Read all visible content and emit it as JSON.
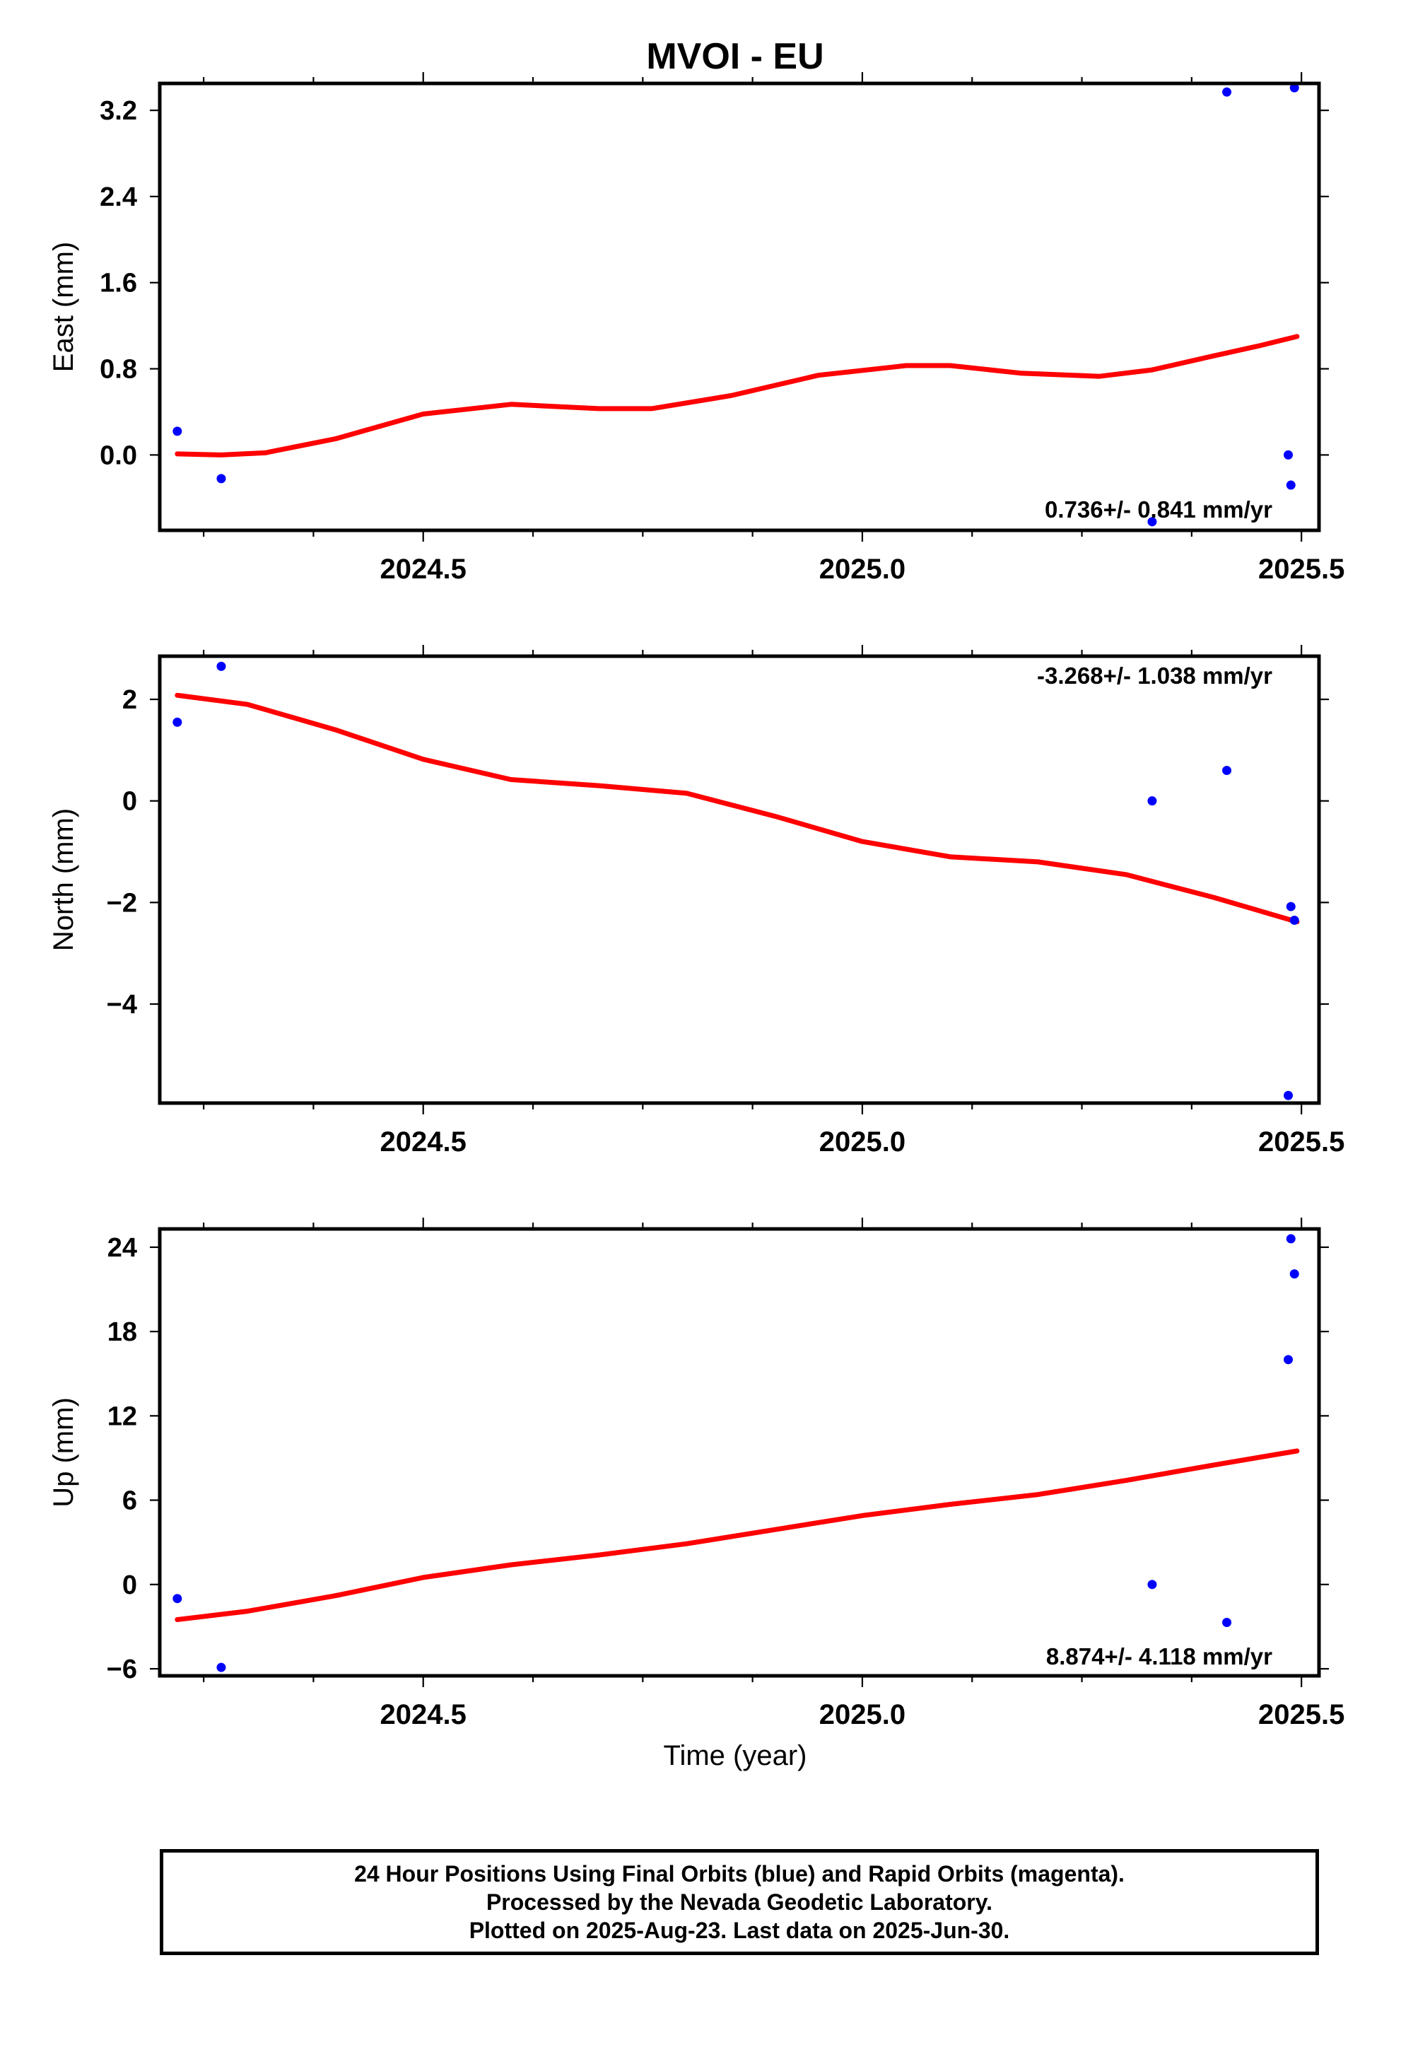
{
  "title": "MVOI - EU",
  "xlabel": "Time (year)",
  "footer": {
    "line1": "24 Hour Positions Using Final Orbits (blue) and Rapid Orbits (magenta).",
    "line2": "Processed by the Nevada Geodetic Laboratory.",
    "line3": "Plotted on 2025-Aug-23. Last data on 2025-Jun-30."
  },
  "colors": {
    "points": "#0000ff",
    "fit": "#ff0000",
    "axes": "#000000"
  },
  "chart_data": [
    {
      "type": "scatter",
      "ylabel": "East (mm)",
      "rate": "0.736+/- 0.841 mm/yr",
      "xlim": [
        2024.2,
        2025.52
      ],
      "ylim": [
        -0.7,
        3.45
      ],
      "yticks": [
        0.0,
        0.8,
        1.6,
        2.4,
        3.2
      ],
      "ytick_labels": [
        "0.0",
        "0.8",
        "1.6",
        "2.4",
        "3.2"
      ],
      "xticks": [
        2024.5,
        2025.0,
        2025.5
      ],
      "xtick_labels": [
        "2024.5",
        "2025.0",
        "2025.5"
      ],
      "points": {
        "x": [
          2024.22,
          2024.27,
          2025.33,
          2025.415,
          2025.485,
          2025.488,
          2025.492
        ],
        "y": [
          0.22,
          -0.22,
          -0.62,
          3.37,
          0.0,
          -0.28,
          3.41
        ]
      },
      "fit": {
        "x": [
          2024.22,
          2024.27,
          2024.32,
          2024.4,
          2024.5,
          2024.6,
          2024.7,
          2024.76,
          2024.85,
          2024.95,
          2025.05,
          2025.1,
          2025.18,
          2025.27,
          2025.33,
          2025.4,
          2025.45,
          2025.495
        ],
        "y": [
          0.01,
          0.0,
          0.02,
          0.15,
          0.38,
          0.47,
          0.43,
          0.43,
          0.55,
          0.74,
          0.83,
          0.83,
          0.76,
          0.73,
          0.79,
          0.92,
          1.01,
          1.1
        ]
      },
      "legend": "none"
    },
    {
      "type": "scatter",
      "ylabel": "North (mm)",
      "rate": "-3.268+/- 1.038 mm/yr",
      "xlim": [
        2024.2,
        2025.52
      ],
      "ylim": [
        -5.95,
        2.85
      ],
      "yticks": [
        -4,
        -2,
        0,
        2
      ],
      "ytick_labels": [
        "−4",
        "−2",
        "0",
        "2"
      ],
      "xticks": [
        2024.5,
        2025.0,
        2025.5
      ],
      "xtick_labels": [
        "2024.5",
        "2025.0",
        "2025.5"
      ],
      "points": {
        "x": [
          2024.22,
          2024.27,
          2025.33,
          2025.415,
          2025.485,
          2025.488,
          2025.492
        ],
        "y": [
          1.55,
          2.65,
          0.0,
          0.6,
          -5.8,
          -2.08,
          -2.35
        ]
      },
      "fit": {
        "x": [
          2024.22,
          2024.3,
          2024.4,
          2024.5,
          2024.6,
          2024.7,
          2024.8,
          2024.9,
          2025.0,
          2025.1,
          2025.2,
          2025.3,
          2025.4,
          2025.495
        ],
        "y": [
          2.08,
          1.9,
          1.4,
          0.82,
          0.42,
          0.3,
          0.15,
          -0.3,
          -0.8,
          -1.1,
          -1.2,
          -1.45,
          -1.9,
          -2.38
        ]
      },
      "legend": "none"
    },
    {
      "type": "scatter",
      "ylabel": "Up (mm)",
      "rate": "8.874+/- 4.118 mm/yr",
      "xlim": [
        2024.2,
        2025.52
      ],
      "ylim": [
        -6.5,
        25.3
      ],
      "yticks": [
        -6,
        0,
        6,
        12,
        18,
        24
      ],
      "ytick_labels": [
        "−6",
        "0",
        "6",
        "12",
        "18",
        "24"
      ],
      "xticks": [
        2024.5,
        2025.0,
        2025.5
      ],
      "xtick_labels": [
        "2024.5",
        "2025.0",
        "2025.5"
      ],
      "points": {
        "x": [
          2024.22,
          2024.27,
          2025.33,
          2025.415,
          2025.485,
          2025.488,
          2025.492
        ],
        "y": [
          -1.0,
          -5.9,
          0.0,
          -2.7,
          16.0,
          24.6,
          22.1
        ]
      },
      "fit": {
        "x": [
          2024.22,
          2024.3,
          2024.4,
          2024.5,
          2024.6,
          2024.7,
          2024.8,
          2024.9,
          2025.0,
          2025.1,
          2025.2,
          2025.3,
          2025.4,
          2025.495
        ],
        "y": [
          -2.5,
          -1.9,
          -0.8,
          0.5,
          1.4,
          2.1,
          2.9,
          3.9,
          4.9,
          5.7,
          6.4,
          7.4,
          8.5,
          9.5
        ]
      },
      "legend": "none"
    }
  ]
}
